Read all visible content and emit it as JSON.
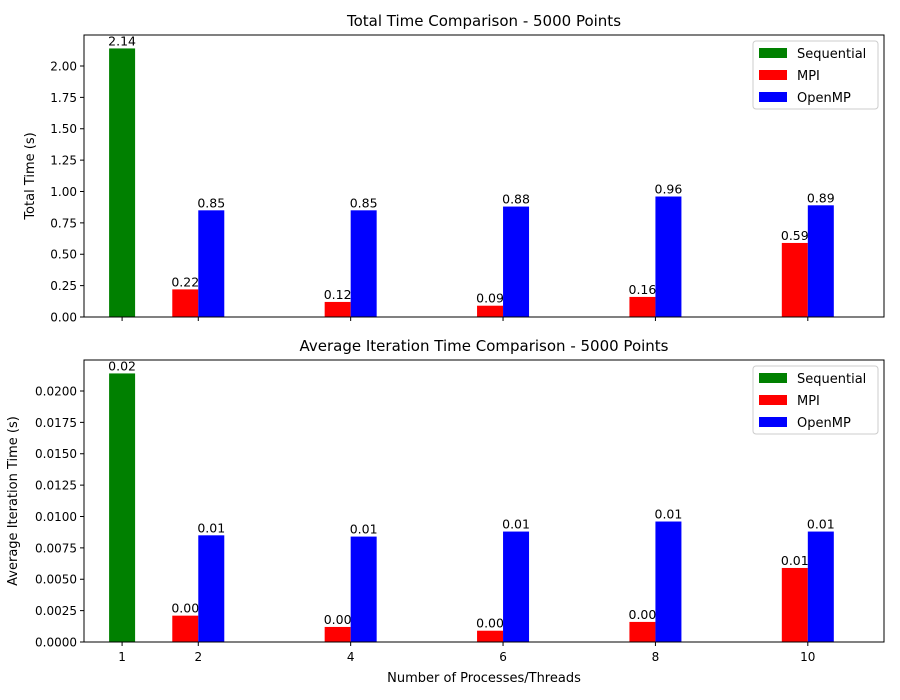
{
  "chart_data": [
    {
      "type": "bar",
      "title": "Total Time Comparison - 5000 Points",
      "xlabel": "",
      "ylabel": "Total Time (s)",
      "xlim": [
        0.5,
        11.0
      ],
      "ylim": [
        0,
        2.247
      ],
      "xticks": [
        1,
        2,
        4,
        6,
        8,
        10
      ],
      "yticks": [
        "0.00",
        "0.25",
        "0.50",
        "0.75",
        "1.00",
        "1.25",
        "1.50",
        "1.75",
        "2.00"
      ],
      "legend_position": "top-right",
      "series": [
        {
          "name": "Sequential",
          "color": "#008000",
          "x": [
            1
          ],
          "values": [
            2.14
          ],
          "labels": [
            "2.14"
          ]
        },
        {
          "name": "MPI",
          "color": "#ff0000",
          "x": [
            2,
            4,
            6,
            8,
            10
          ],
          "values": [
            0.22,
            0.12,
            0.09,
            0.16,
            0.59
          ],
          "labels": [
            "0.22",
            "0.12",
            "0.09",
            "0.16",
            "0.59"
          ]
        },
        {
          "name": "OpenMP",
          "color": "#0000ff",
          "x": [
            2,
            4,
            6,
            8,
            10
          ],
          "values": [
            0.85,
            0.85,
            0.88,
            0.96,
            0.89
          ],
          "labels": [
            "0.85",
            "0.85",
            "0.88",
            "0.96",
            "0.89"
          ]
        }
      ]
    },
    {
      "type": "bar",
      "title": "Average Iteration Time Comparison - 5000 Points",
      "xlabel": "Number of Processes/Threads",
      "ylabel": "Average Iteration Time (s)",
      "xlim": [
        0.5,
        11.0
      ],
      "ylim": [
        0,
        0.02247
      ],
      "xticks": [
        1,
        2,
        4,
        6,
        8,
        10
      ],
      "yticks": [
        "0.0000",
        "0.0025",
        "0.0050",
        "0.0075",
        "0.0100",
        "0.0125",
        "0.0150",
        "0.0175",
        "0.0200"
      ],
      "legend_position": "top-right",
      "series": [
        {
          "name": "Sequential",
          "color": "#008000",
          "x": [
            1
          ],
          "values": [
            0.0214
          ],
          "labels": [
            "0.02"
          ]
        },
        {
          "name": "MPI",
          "color": "#ff0000",
          "x": [
            2,
            4,
            6,
            8,
            10
          ],
          "values": [
            0.0021,
            0.0012,
            0.0009,
            0.0016,
            0.0059
          ],
          "labels": [
            "0.00",
            "0.00",
            "0.00",
            "0.00",
            "0.01"
          ]
        },
        {
          "name": "OpenMP",
          "color": "#0000ff",
          "x": [
            2,
            4,
            6,
            8,
            10
          ],
          "values": [
            0.0085,
            0.0084,
            0.0088,
            0.0096,
            0.0088
          ],
          "labels": [
            "0.01",
            "0.01",
            "0.01",
            "0.01",
            "0.01"
          ]
        }
      ]
    }
  ]
}
